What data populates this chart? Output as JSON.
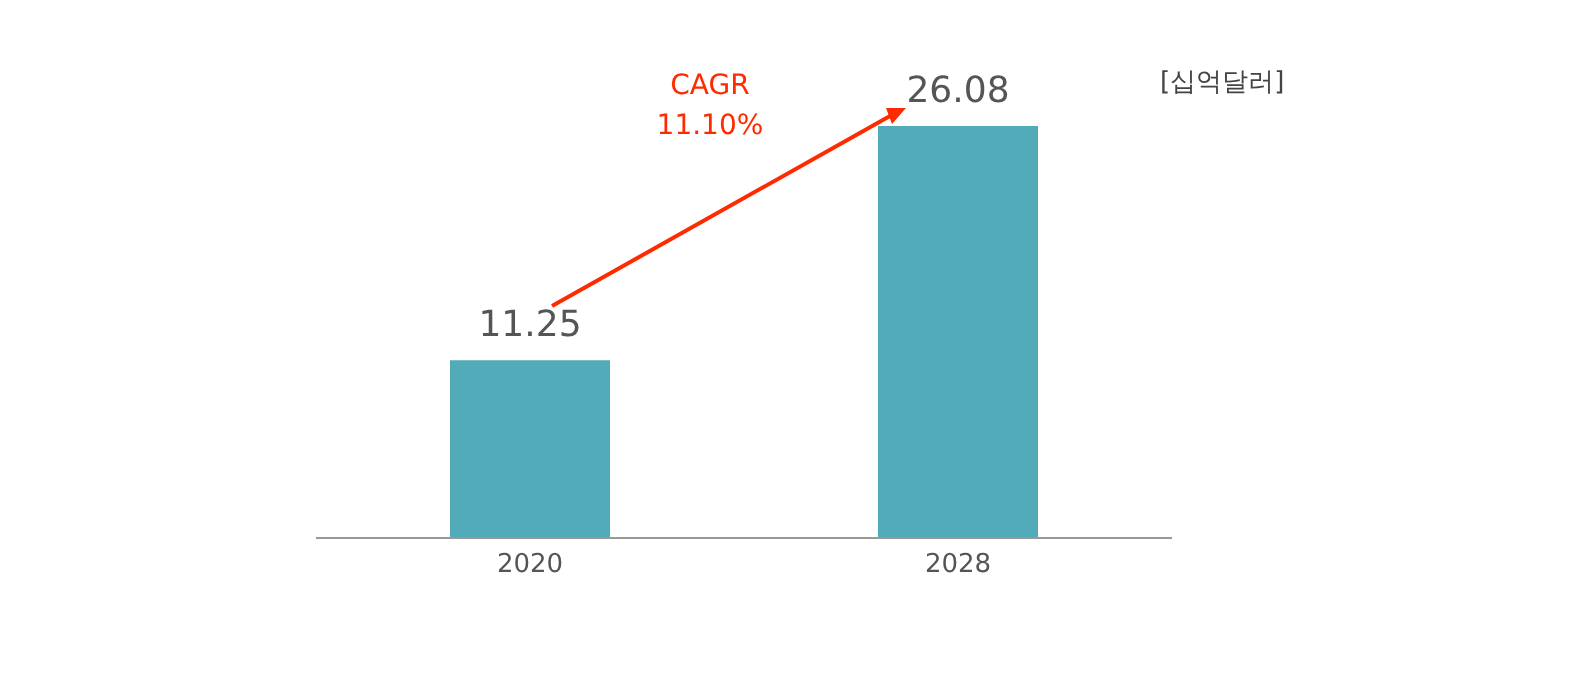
{
  "chart_data": {
    "type": "bar",
    "categories": [
      "2020",
      "2028"
    ],
    "values": [
      11.25,
      26.08
    ],
    "color": "#51abb9",
    "data_labels": true,
    "annotations": [
      "[십억달러]",
      "CAGR\n11.10%"
    ]
  }
}
